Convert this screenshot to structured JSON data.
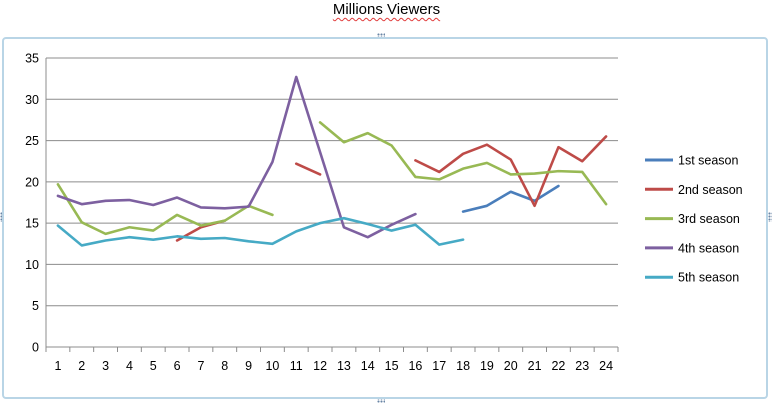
{
  "header": {
    "title": "Millions Viewers"
  },
  "chart_data": {
    "type": "line",
    "title": "Millions Viewers",
    "xlabel": "",
    "ylabel": "",
    "ylim": [
      0,
      35
    ],
    "yticks": [
      "0",
      "5",
      "10",
      "15",
      "20",
      "25",
      "30",
      "35"
    ],
    "categories": [
      "1",
      "2",
      "3",
      "4",
      "5",
      "6",
      "7",
      "8",
      "9",
      "10",
      "11",
      "12",
      "13",
      "14",
      "15",
      "16",
      "17",
      "18",
      "19",
      "20",
      "21",
      "22",
      "23",
      "24"
    ],
    "grid": true,
    "legend_position": "right",
    "series": [
      {
        "name": "1st season",
        "color": "#4a7ebb",
        "values": [
          null,
          null,
          null,
          null,
          null,
          null,
          null,
          null,
          null,
          null,
          null,
          null,
          null,
          null,
          null,
          null,
          null,
          16.4,
          17.1,
          18.8,
          17.7,
          19.5,
          null,
          null
        ]
      },
      {
        "name": "2nd season",
        "color": "#be4b48",
        "values": [
          null,
          null,
          null,
          null,
          null,
          12.9,
          14.5,
          15.3,
          null,
          null,
          22.2,
          20.9,
          null,
          null,
          null,
          22.6,
          21.2,
          23.4,
          24.5,
          22.7,
          17.1,
          24.2,
          22.5,
          25.5
        ]
      },
      {
        "name": "3rd season",
        "color": "#98b954",
        "values": [
          19.7,
          15.1,
          13.7,
          14.5,
          14.1,
          16.0,
          14.7,
          15.3,
          17.1,
          16.0,
          null,
          27.2,
          24.8,
          25.9,
          24.4,
          20.6,
          20.3,
          21.6,
          22.3,
          20.9,
          21.0,
          21.3,
          21.2,
          17.3
        ]
      },
      {
        "name": "4th season",
        "color": "#7d60a0",
        "values": [
          18.3,
          17.3,
          17.7,
          17.8,
          17.2,
          18.1,
          16.9,
          16.8,
          17.0,
          22.4,
          32.7,
          23.6,
          14.5,
          13.3,
          14.8,
          16.1,
          null,
          null,
          null,
          null,
          null,
          null,
          null,
          null
        ]
      },
      {
        "name": "5th season",
        "color": "#46aac5",
        "values": [
          14.7,
          12.3,
          12.9,
          13.3,
          13.0,
          13.4,
          13.1,
          13.2,
          12.8,
          12.5,
          14.0,
          15.0,
          15.6,
          14.9,
          14.1,
          14.8,
          12.4,
          13.0,
          null,
          null,
          null,
          null,
          null,
          null
        ]
      }
    ]
  }
}
